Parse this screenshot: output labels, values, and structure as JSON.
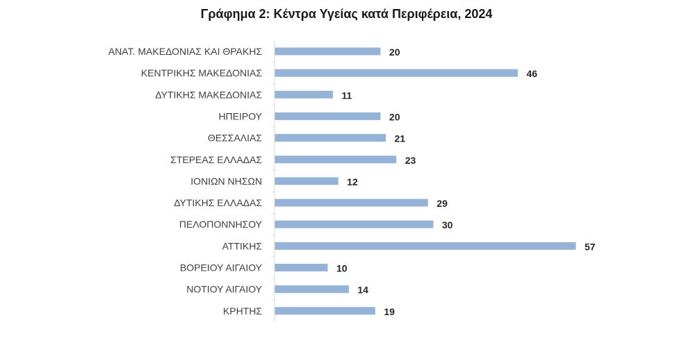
{
  "chart_data": {
    "type": "bar",
    "orientation": "horizontal",
    "title": "Γράφημα 2: Κέντρα Υγείας κατά Περιφέρεια, 2024",
    "xlabel": "",
    "ylabel": "",
    "categories": [
      "ΑΝΑΤ. ΜΑΚΕΔΟΝΙΑΣ ΚΑΙ ΘΡΑΚΗΣ",
      "ΚΕΝΤΡΙΚΗΣ ΜΑΚΕΔΟΝΙΑΣ",
      "ΔΥΤΙΚΗΣ ΜΑΚΕΔΟΝΙΑΣ",
      "ΗΠΕΙΡΟΥ",
      "ΘΕΣΣΑΛΙΑΣ",
      "ΣΤΕΡΕΑΣ ΕΛΛΑΔΑΣ",
      "ΙΟΝΙΩΝ ΝΗΣΩΝ",
      "ΔΥΤΙΚΗΣ ΕΛΛΑΔΑΣ",
      "ΠΕΛΟΠΟΝΝΗΣΟΥ",
      "ΑΤΤΙΚΗΣ",
      "ΒΟΡΕΙΟΥ ΑΙΓΑΙΟΥ",
      "ΝΟΤΙΟΥ ΑΙΓΑΙΟΥ",
      "ΚΡΗΤΗΣ"
    ],
    "values": [
      20,
      46,
      11,
      20,
      21,
      23,
      12,
      29,
      30,
      57,
      10,
      14,
      19
    ],
    "xlim": [
      0,
      57
    ],
    "grid": false,
    "legend": "none",
    "bar_color": "#95b3d7",
    "axis_color": "#d9d9d9"
  }
}
